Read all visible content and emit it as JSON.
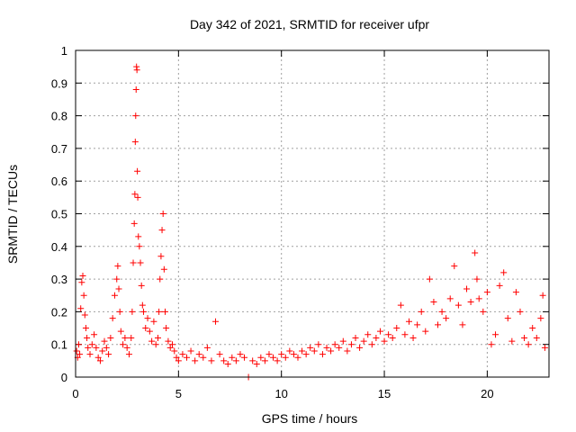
{
  "chart_data": {
    "type": "scatter",
    "title": "Day 342 of 2021, SRMTID for receiver ufpr",
    "xlabel": "GPS time / hours",
    "ylabel": "SRMTID / TECUs",
    "xlim": [
      0,
      23
    ],
    "ylim": [
      0,
      1
    ],
    "xticks": [
      0,
      5,
      10,
      15,
      20
    ],
    "xtick_labels": [
      "0",
      "5",
      "10",
      "15",
      "20"
    ],
    "yticks": [
      0,
      0.1,
      0.2,
      0.3,
      0.4,
      0.5,
      0.6,
      0.7,
      0.8,
      0.9,
      1
    ],
    "ytick_labels": [
      "0",
      "0.1",
      "0.2",
      "0.3",
      "0.4",
      "0.5",
      "0.6",
      "0.7",
      "0.8",
      "0.9",
      "1"
    ],
    "grid": true,
    "marker": "+",
    "color": "#ff0000",
    "series": [
      {
        "name": "SRMTID",
        "points": [
          [
            0.05,
            0.08
          ],
          [
            0.1,
            0.06
          ],
          [
            0.15,
            0.1
          ],
          [
            0.2,
            0.07
          ],
          [
            0.25,
            0.21
          ],
          [
            0.3,
            0.29
          ],
          [
            0.35,
            0.31
          ],
          [
            0.4,
            0.25
          ],
          [
            0.45,
            0.19
          ],
          [
            0.5,
            0.15
          ],
          [
            0.55,
            0.12
          ],
          [
            0.6,
            0.09
          ],
          [
            0.7,
            0.07
          ],
          [
            0.8,
            0.1
          ],
          [
            0.9,
            0.13
          ],
          [
            1.0,
            0.09
          ],
          [
            1.1,
            0.06
          ],
          [
            1.2,
            0.05
          ],
          [
            1.3,
            0.08
          ],
          [
            1.4,
            0.11
          ],
          [
            1.5,
            0.09
          ],
          [
            1.6,
            0.07
          ],
          [
            1.7,
            0.12
          ],
          [
            1.8,
            0.18
          ],
          [
            1.9,
            0.25
          ],
          [
            2.0,
            0.3
          ],
          [
            2.05,
            0.34
          ],
          [
            2.1,
            0.27
          ],
          [
            2.15,
            0.2
          ],
          [
            2.2,
            0.14
          ],
          [
            2.3,
            0.1
          ],
          [
            2.4,
            0.12
          ],
          [
            2.5,
            0.09
          ],
          [
            2.6,
            0.07
          ],
          [
            2.7,
            0.12
          ],
          [
            2.75,
            0.2
          ],
          [
            2.8,
            0.35
          ],
          [
            2.85,
            0.47
          ],
          [
            2.88,
            0.56
          ],
          [
            2.9,
            0.72
          ],
          [
            2.92,
            0.8
          ],
          [
            2.94,
            0.88
          ],
          [
            2.96,
            0.95
          ],
          [
            2.98,
            0.94
          ],
          [
            3.0,
            0.63
          ],
          [
            3.02,
            0.55
          ],
          [
            3.05,
            0.43
          ],
          [
            3.1,
            0.4
          ],
          [
            3.15,
            0.35
          ],
          [
            3.2,
            0.28
          ],
          [
            3.25,
            0.22
          ],
          [
            3.3,
            0.2
          ],
          [
            3.4,
            0.15
          ],
          [
            3.5,
            0.18
          ],
          [
            3.6,
            0.14
          ],
          [
            3.7,
            0.11
          ],
          [
            3.8,
            0.17
          ],
          [
            3.9,
            0.1
          ],
          [
            4.0,
            0.12
          ],
          [
            4.05,
            0.2
          ],
          [
            4.1,
            0.3
          ],
          [
            4.15,
            0.37
          ],
          [
            4.2,
            0.45
          ],
          [
            4.25,
            0.5
          ],
          [
            4.3,
            0.33
          ],
          [
            4.35,
            0.2
          ],
          [
            4.4,
            0.15
          ],
          [
            4.5,
            0.11
          ],
          [
            4.6,
            0.09
          ],
          [
            4.7,
            0.1
          ],
          [
            4.8,
            0.08
          ],
          [
            4.9,
            0.06
          ],
          [
            5.0,
            0.05
          ],
          [
            5.2,
            0.07
          ],
          [
            5.4,
            0.06
          ],
          [
            5.6,
            0.08
          ],
          [
            5.8,
            0.05
          ],
          [
            6.0,
            0.07
          ],
          [
            6.2,
            0.06
          ],
          [
            6.4,
            0.09
          ],
          [
            6.6,
            0.05
          ],
          [
            6.8,
            0.17
          ],
          [
            7.0,
            0.07
          ],
          [
            7.2,
            0.05
          ],
          [
            7.4,
            0.04
          ],
          [
            7.6,
            0.06
          ],
          [
            7.8,
            0.05
          ],
          [
            8.0,
            0.07
          ],
          [
            8.2,
            0.06
          ],
          [
            8.4,
            0.0
          ],
          [
            8.6,
            0.05
          ],
          [
            8.8,
            0.04
          ],
          [
            9.0,
            0.06
          ],
          [
            9.2,
            0.05
          ],
          [
            9.4,
            0.07
          ],
          [
            9.6,
            0.06
          ],
          [
            9.8,
            0.05
          ],
          [
            10.0,
            0.07
          ],
          [
            10.2,
            0.06
          ],
          [
            10.4,
            0.08
          ],
          [
            10.6,
            0.07
          ],
          [
            10.8,
            0.06
          ],
          [
            11.0,
            0.08
          ],
          [
            11.2,
            0.07
          ],
          [
            11.4,
            0.09
          ],
          [
            11.6,
            0.08
          ],
          [
            11.8,
            0.1
          ],
          [
            12.0,
            0.07
          ],
          [
            12.2,
            0.09
          ],
          [
            12.4,
            0.08
          ],
          [
            12.6,
            0.1
          ],
          [
            12.8,
            0.09
          ],
          [
            13.0,
            0.11
          ],
          [
            13.2,
            0.08
          ],
          [
            13.4,
            0.1
          ],
          [
            13.6,
            0.12
          ],
          [
            13.8,
            0.09
          ],
          [
            14.0,
            0.11
          ],
          [
            14.2,
            0.13
          ],
          [
            14.4,
            0.1
          ],
          [
            14.6,
            0.12
          ],
          [
            14.8,
            0.14
          ],
          [
            15.0,
            0.11
          ],
          [
            15.2,
            0.13
          ],
          [
            15.4,
            0.12
          ],
          [
            15.6,
            0.15
          ],
          [
            15.8,
            0.22
          ],
          [
            16.0,
            0.13
          ],
          [
            16.2,
            0.17
          ],
          [
            16.4,
            0.12
          ],
          [
            16.6,
            0.16
          ],
          [
            16.8,
            0.2
          ],
          [
            17.0,
            0.14
          ],
          [
            17.2,
            0.3
          ],
          [
            17.4,
            0.23
          ],
          [
            17.6,
            0.16
          ],
          [
            17.8,
            0.2
          ],
          [
            18.0,
            0.18
          ],
          [
            18.2,
            0.24
          ],
          [
            18.4,
            0.34
          ],
          [
            18.6,
            0.22
          ],
          [
            18.8,
            0.16
          ],
          [
            19.0,
            0.27
          ],
          [
            19.2,
            0.23
          ],
          [
            19.4,
            0.38
          ],
          [
            19.5,
            0.3
          ],
          [
            19.6,
            0.24
          ],
          [
            19.8,
            0.2
          ],
          [
            20.0,
            0.26
          ],
          [
            20.2,
            0.1
          ],
          [
            20.4,
            0.13
          ],
          [
            20.6,
            0.28
          ],
          [
            20.8,
            0.32
          ],
          [
            21.0,
            0.18
          ],
          [
            21.2,
            0.11
          ],
          [
            21.4,
            0.26
          ],
          [
            21.6,
            0.2
          ],
          [
            21.8,
            0.12
          ],
          [
            22.0,
            0.1
          ],
          [
            22.2,
            0.15
          ],
          [
            22.4,
            0.12
          ],
          [
            22.6,
            0.18
          ],
          [
            22.7,
            0.25
          ],
          [
            22.8,
            0.09
          ]
        ]
      }
    ]
  }
}
